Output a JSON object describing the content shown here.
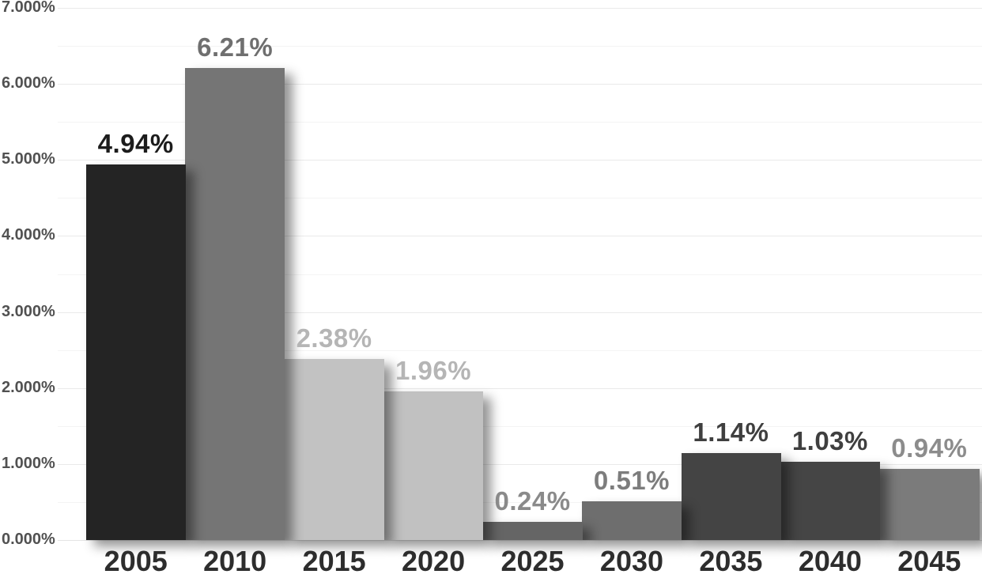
{
  "chart_data": {
    "type": "bar",
    "title": "",
    "xlabel": "",
    "ylabel": "",
    "categories": [
      "2005",
      "2010",
      "2015",
      "2020",
      "2025",
      "2030",
      "2035",
      "2040",
      "2045"
    ],
    "values": [
      4.94,
      6.21,
      2.38,
      1.96,
      0.24,
      0.51,
      1.14,
      1.03,
      0.94
    ],
    "value_labels": [
      "4.94%",
      "6.21%",
      "2.38%",
      "1.96%",
      "0.24%",
      "0.51%",
      "1.14%",
      "1.03%",
      "0.94%"
    ],
    "bar_colors": [
      "#242424",
      "#757575",
      "#c2c2c2",
      "#c1c1c1",
      "#656565",
      "#6e6e6e",
      "#444444",
      "#454545",
      "#7b7b7b"
    ],
    "value_label_colors": [
      "#1c1c1c",
      "#6f6f6f",
      "#b5b5b5",
      "#b5b5b5",
      "#8a8a8a",
      "#7d7d7d",
      "#3f3f3f",
      "#3f3f3f",
      "#8c8c8c"
    ],
    "y_ticks": [
      "0.000%",
      "1.000%",
      "2.000%",
      "3.000%",
      "4.000%",
      "5.000%",
      "6.000%",
      "7.000%"
    ],
    "ylim": [
      0,
      7
    ],
    "y_minor_step": 0.5,
    "grid": "horizontal",
    "legend": "none",
    "background_color": "#ffffff",
    "y_tick_color": "#515151",
    "x_tick_color": "#2d2d2d"
  }
}
